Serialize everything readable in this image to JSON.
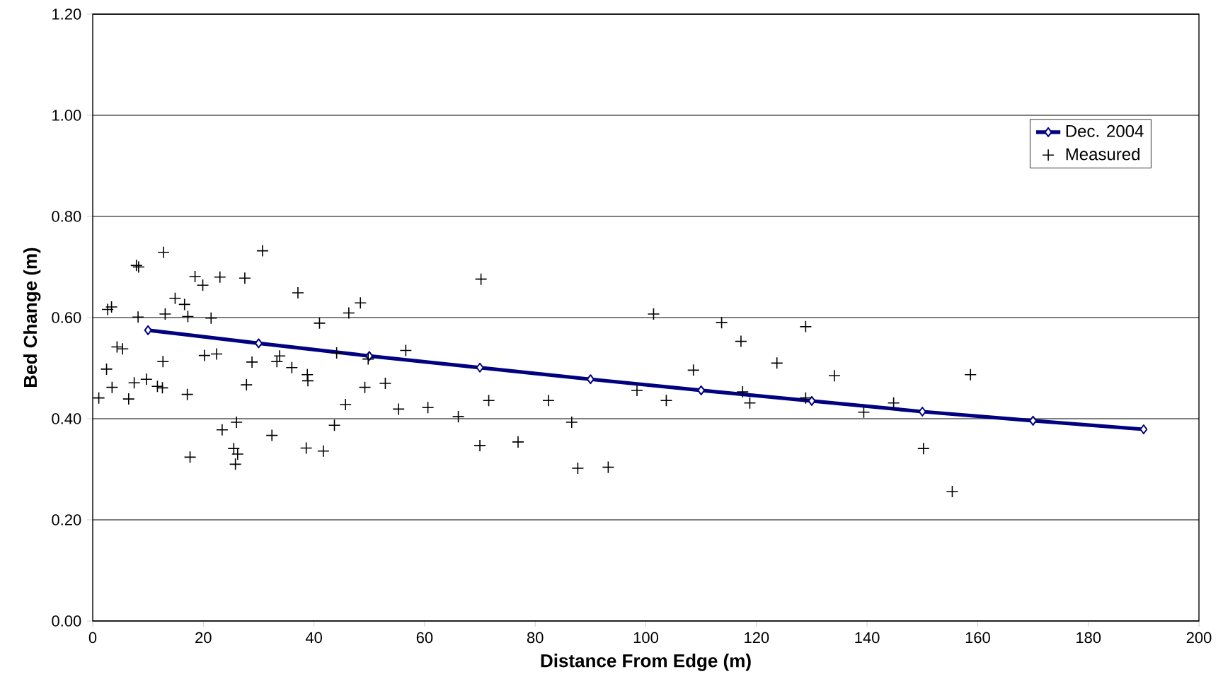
{
  "chart_data": {
    "type": "scatter",
    "xlabel": "Distance From Edge (m)",
    "ylabel": "Bed Change (m)",
    "xlim": [
      0,
      200
    ],
    "ylim": [
      0,
      1.2
    ],
    "xticks": [
      0,
      20,
      40,
      60,
      80,
      100,
      120,
      140,
      160,
      180,
      200
    ],
    "yticks": [
      {
        "value": 0,
        "label": "0.00"
      },
      {
        "value": 0.2,
        "label": "0.20"
      },
      {
        "value": 0.4,
        "label": "0.40"
      },
      {
        "value": 0.6,
        "label": "0.60"
      },
      {
        "value": 0.8,
        "label": "0.80"
      },
      {
        "value": 1.0,
        "label": "1.00"
      },
      {
        "value": 1.2,
        "label": "1.20"
      }
    ],
    "grid": "y",
    "legend": "top right",
    "series": [
      {
        "name": "Dec. 2004",
        "type": "line",
        "color": "#000080",
        "marker": "diamond",
        "line_style": "solid",
        "x": [
          10,
          30,
          50,
          70,
          90,
          110,
          130,
          150,
          170,
          190
        ],
        "values": [
          0.575,
          0.549,
          0.524,
          0.501,
          0.478,
          0.456,
          0.435,
          0.414,
          0.396,
          0.379
        ]
      },
      {
        "name": "Measured",
        "color": "#000000",
        "marker": "cross",
        "x": [
          1.1,
          2.5,
          2.7,
          3.4,
          3.5,
          4.4,
          5.4,
          6.5,
          7.5,
          7.9,
          8.3,
          8.2,
          9.7,
          11.7,
          12.6,
          12.7,
          12.8,
          13.1,
          14.9,
          16.6,
          17.1,
          17.2,
          17.6,
          18.5,
          19.9,
          20.2,
          21.4,
          22.4,
          23.0,
          23.4,
          25.5,
          25.8,
          26.0,
          26.2,
          27.5,
          27.8,
          28.8,
          30.7,
          32.4,
          33.3,
          33.8,
          36.0,
          37.1,
          38.6,
          38.8,
          38.9,
          41.0,
          41.7,
          43.7,
          44.1,
          45.7,
          46.3,
          48.4,
          49.2,
          49.8,
          52.9,
          55.3,
          56.6,
          60.6,
          66.1,
          70.0,
          70.2,
          71.6,
          76.9,
          82.4,
          86.6,
          87.7,
          93.2,
          98.4,
          101.4,
          103.7,
          108.6,
          113.7,
          117.2,
          117.5,
          118.8,
          123.7,
          128.9,
          128.9,
          134.1,
          139.4,
          144.8,
          150.2,
          155.4,
          158.7
        ],
        "values": [
          0.441,
          0.498,
          0.616,
          0.621,
          0.462,
          0.542,
          0.538,
          0.439,
          0.471,
          0.703,
          0.7,
          0.601,
          0.478,
          0.464,
          0.461,
          0.513,
          0.729,
          0.607,
          0.638,
          0.626,
          0.448,
          0.602,
          0.324,
          0.681,
          0.664,
          0.525,
          0.599,
          0.528,
          0.68,
          0.378,
          0.341,
          0.31,
          0.393,
          0.33,
          0.678,
          0.467,
          0.512,
          0.732,
          0.367,
          0.513,
          0.524,
          0.501,
          0.649,
          0.342,
          0.487,
          0.475,
          0.589,
          0.336,
          0.387,
          0.53,
          0.428,
          0.609,
          0.629,
          0.462,
          0.518,
          0.47,
          0.419,
          0.535,
          0.422,
          0.404,
          0.347,
          0.676,
          0.436,
          0.354,
          0.436,
          0.393,
          0.302,
          0.304,
          0.456,
          0.607,
          0.436,
          0.496,
          0.59,
          0.553,
          0.453,
          0.431,
          0.51,
          0.582,
          0.441,
          0.485,
          0.413,
          0.431,
          0.341,
          0.256,
          0.487
        ]
      }
    ]
  }
}
